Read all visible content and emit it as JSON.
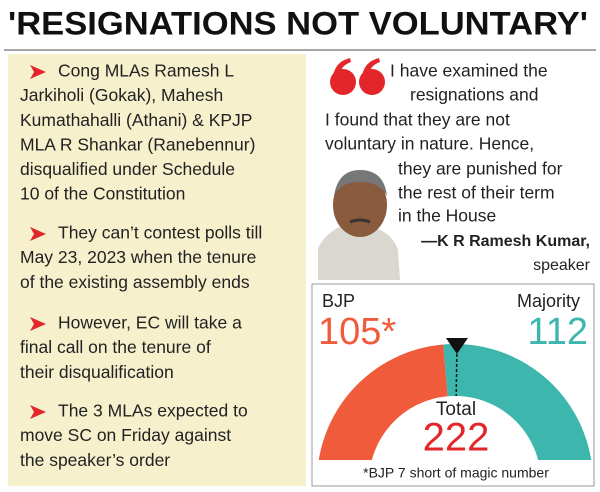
{
  "title": "'RESIGNATIONS NOT VOLUNTARY'",
  "bullets": [
    [
      "Cong MLAs Ramesh L",
      "Jarkiholi (Gokak), Mahesh",
      "Kumathahalli (Athani) & KPJP",
      "MLA R Shankar (Ranebennur)",
      "disqualified under Schedule",
      "10 of the Constitution"
    ],
    [
      "They can’t contest polls till",
      "May 23, 2023 when the tenure",
      "of the existing assembly ends"
    ],
    [
      "However, EC will take a",
      "final call on the tenure of",
      "their disqualification"
    ],
    [
      "The 3 MLAs expected to",
      "move SC on Friday against",
      "the speaker’s order"
    ]
  ],
  "quote": {
    "lines": [
      "I have examined the",
      "resignations and",
      "I found that they are not",
      "voluntary in nature. Hence,",
      "they are punished for",
      "the rest of their term",
      "in the House"
    ],
    "attribution": "—K R Ramesh Kumar,",
    "role": "speaker"
  },
  "gauge": {
    "bjp_label": "BJP",
    "bjp_value": 105,
    "bjp_value_label": "105*",
    "bjp_color": "#ef5b3b",
    "majority_label": "Majority",
    "majority_value": 112,
    "rest_color": "#3db7ae",
    "total_label": "Total",
    "total_value": 222,
    "footnote": "*BJP 7 short of magic number"
  }
}
